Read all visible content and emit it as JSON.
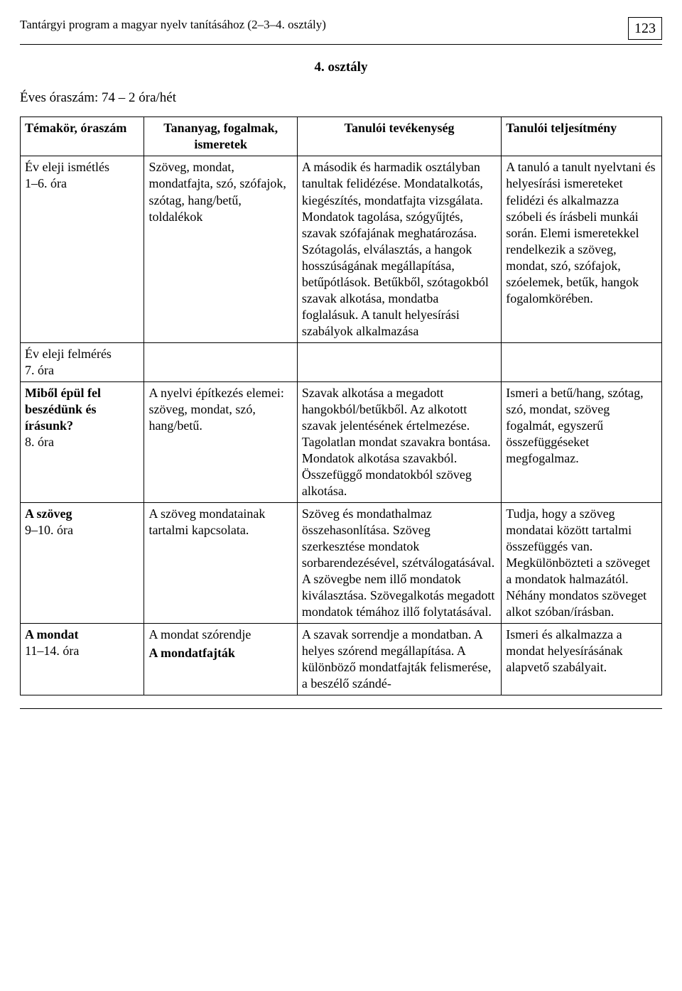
{
  "page": {
    "running_title": "Tantárgyi program a magyar nyelv tanításához (2–3–4. osztály)",
    "number": "123"
  },
  "grade_heading": "4. osztály",
  "year_line": "Éves óraszám: 74 – 2 óra/hét",
  "headers": {
    "col1": "Témakör, óraszám",
    "col2": "Tananyag, fogalmak, ismeretek",
    "col3": "Tanulói tevékenység",
    "col4": "Tanulói teljesítmény"
  },
  "rows": {
    "r1": {
      "topic_line1": "Év eleji ismétlés",
      "topic_line2": "1–6. óra",
      "material": "Szöveg, mondat, mondatfajta, szó, szófajok, szótag, hang/betű, toldalékok",
      "activity": "A második és harmadik osztályban tanultak felidézése. Mondatalkotás, kiegészítés, mondatfajta vizsgálata. Mondatok tagolása, szógyűjtés, szavak szófajának meghatározása. Szótagolás, elválasztás, a hangok hosszúságának megállapítása, betűpótlások. Betűkből, szótagokból szavak alkotása, mondatba foglalásuk. A tanult helyesírási szabályok alkalmazása",
      "performance": "A tanuló a tanult nyelvtani és helyesírási ismereteket felidézi és alkalmazza szóbeli és írásbeli munkái során. Elemi ismeretekkel rendelkezik a szöveg, mondat, szó, szófajok, szóelemek, betűk, hangok fogalomkörében."
    },
    "r2": {
      "topic_line1": "Év eleji felmérés",
      "topic_line2": " 7. óra"
    },
    "r3": {
      "topic_line1": "Miből épül fel beszédünk és írásunk?",
      "topic_line2": "8. óra",
      "material": "A nyelvi építkezés elemei: szöveg, mondat, szó, hang/betű.",
      "activity": "Szavak alkotása a megadott hangokból/betűkből. Az alkotott szavak jelentésének értelmezése. Tagolatlan mondat szavakra bontása. Mondatok alkotása szavakból. Összefüggő mondatokból szöveg alkotása.",
      "performance": "Ismeri a betű/hang, szótag, szó, mondat, szöveg fogalmát, egyszerű összefüggéseket megfogalmaz."
    },
    "r4": {
      "topic_line1": "A szöveg",
      "topic_line2": "9–10. óra",
      "material": "A szöveg mondatainak tartalmi kapcsolata.",
      "activity": "Szöveg és mondathalmaz összehasonlítása. Szöveg szerkesztése mondatok sorbarendezésével, szétválogatásával. A szövegbe nem illő mondatok kiválasztása. Szövegalkotás megadott mondatok témához illő folytatásával.",
      "performance": "Tudja, hogy a szöveg mondatai között tartalmi összefüggés van. Megkülönbözteti a szöveget a mondatok halmazától. Néhány mondatos szöveget alkot szóban/írásban."
    },
    "r5": {
      "topic_line1": "A mondat",
      "topic_line2": "11–14. óra",
      "material_line1": "A mondat szórendje",
      "material_line2": "A mondatfajták",
      "activity": "A szavak sorrendje a mondatban. A helyes szórend megállapítása. A különböző mondatfajták felismerése, a beszélő szándé-",
      "performance": "Ismeri és alkalmazza a mondat helyesírásának alapvető szabályait."
    }
  }
}
